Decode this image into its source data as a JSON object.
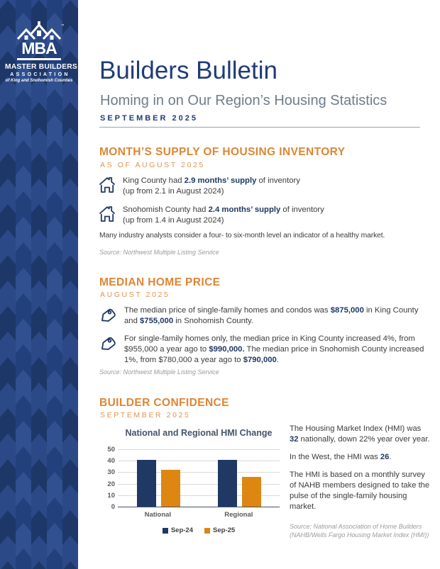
{
  "sidebar": {
    "logo": {
      "mba": "MBA",
      "trademark": "™",
      "org_line1": "MASTER BUILDERS",
      "org_line2": "ASSOCIATION",
      "org_line3": "of King and Snohomish Counties"
    },
    "colors": {
      "base": "#2C4A8A",
      "chevron_dark": "#1D3768",
      "chevron_mid": "#2B4987",
      "chevron_light": "#31508F",
      "chevron_dark2": "#22407C"
    }
  },
  "header": {
    "title": "Builders Bulletin",
    "subtitle": "Homing in on Our Region’s Housing Statistics",
    "issue_date": "SEPTEMBER 2025"
  },
  "supply_section": {
    "heading": "MONTH’S SUPPLY OF HOUSING INVENTORY",
    "subheading": "AS OF AUGUST 2025",
    "items": [
      {
        "segments": [
          {
            "t": "King County had ",
            "b": false
          },
          {
            "t": "2.9 months’ supply",
            "b": true
          },
          {
            "t": " of inventory",
            "b": false
          }
        ],
        "detail": "(up from 2.1 in August 2024)"
      },
      {
        "segments": [
          {
            "t": "Snohomish County had ",
            "b": false
          },
          {
            "t": "2.4 months’ supply",
            "b": true
          },
          {
            "t": " of inventory",
            "b": false
          }
        ],
        "detail": "(up from 1.4 in August 2024)"
      }
    ],
    "note": "Many industry analysts consider a four- to six-month level an indicator of a healthy market.",
    "source": "Source: Northwest Multiple Listing Service"
  },
  "price_section": {
    "heading": "MEDIAN HOME PRICE",
    "subheading": "AUGUST 2025",
    "items": [
      {
        "segments": [
          {
            "t": "The median price of single-family homes and condos was ",
            "b": false
          },
          {
            "t": "$875,000",
            "b": true
          },
          {
            "t": " in King County and ",
            "b": false
          },
          {
            "t": "$755,000",
            "b": true
          },
          {
            "t": " in Snohomish County.",
            "b": false
          }
        ]
      },
      {
        "segments": [
          {
            "t": "For single-family homes only, the median price in King County increased 4%, from $955,000 a year ago to ",
            "b": false
          },
          {
            "t": "$990,000.",
            "b": true
          },
          {
            "t": " The median price in Snohomish County increased 1%, from $780,000 a year ago to ",
            "b": false
          },
          {
            "t": "$790,000",
            "b": true
          },
          {
            "t": ".",
            "b": false
          }
        ]
      }
    ],
    "source": "Source: Northwest Multiple Listing Service"
  },
  "confidence_section": {
    "heading": "BUILDER CONFIDENCE",
    "subheading": "SEPTEMBER 2025",
    "paragraphs": [
      {
        "segments": [
          {
            "t": "The Housing Market Index (HMI) was ",
            "b": false
          },
          {
            "t": "32",
            "b": true
          },
          {
            "t": " nationally, down 22% year over year.",
            "b": false
          }
        ]
      },
      {
        "segments": [
          {
            "t": "In the West, the HMI was ",
            "b": false
          },
          {
            "t": "26",
            "b": true
          },
          {
            "t": ".",
            "b": false
          }
        ]
      },
      {
        "segments": [
          {
            "t": "The HMI is based on a monthly survey of NAHB members designed to take the pulse of the single-family housing market.",
            "b": false
          }
        ]
      }
    ],
    "source": "Source: National Association of Home Builders (NAHB/Wells Fargo Housing Market Index (HMI))"
  },
  "chart_data": {
    "type": "bar",
    "title": "National and Regional HMI Change",
    "categories": [
      "National",
      "Regional"
    ],
    "series": [
      {
        "name": "Sep-24",
        "color": "#1F3864",
        "values": [
          41,
          41
        ]
      },
      {
        "name": "Sep-25",
        "color": "#DD8712",
        "values": [
          32,
          26
        ]
      }
    ],
    "xlabel": "",
    "ylabel": "",
    "ylim": [
      0,
      50
    ],
    "yticks": [
      0,
      10,
      20,
      30,
      40,
      50
    ],
    "grid": true,
    "legend_position": "bottom"
  },
  "colors": {
    "navy_title": "#1F3C78",
    "navy_emphasis": "#1F3864",
    "orange_heading": "#DD8633",
    "orange_subheading": "#E0944F",
    "subtitle_gray": "#6F7D8A",
    "body_text": "#3B3B3B",
    "source_gray": "#9B9B9B"
  }
}
